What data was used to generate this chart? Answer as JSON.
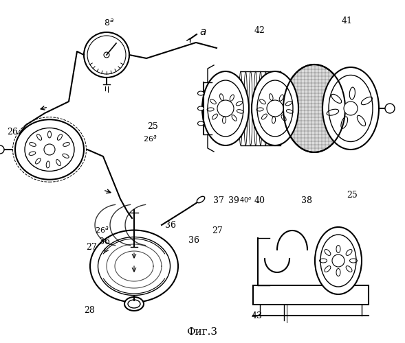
{
  "title": "Фиг.3",
  "background_color": "#ffffff",
  "line_color": "#000000"
}
